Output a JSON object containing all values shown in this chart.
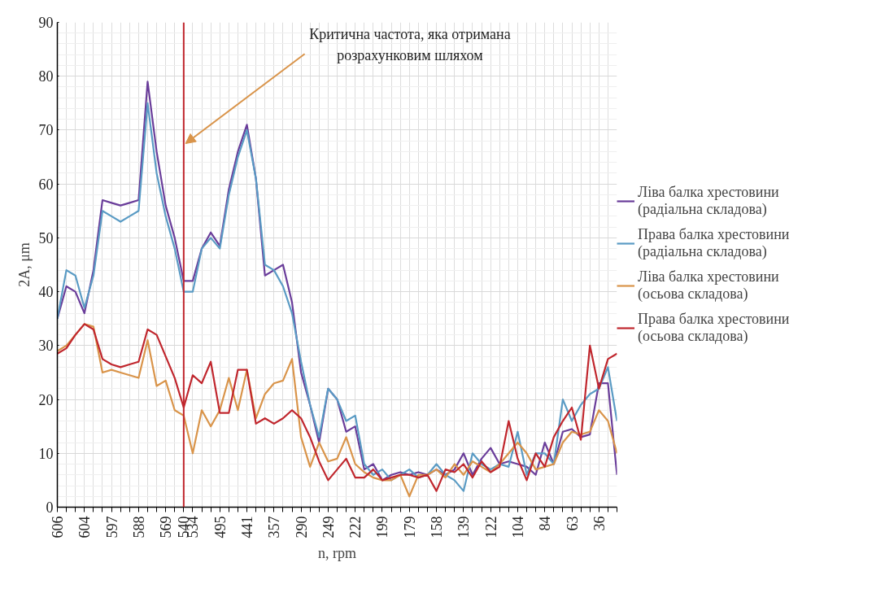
{
  "chart_data": {
    "type": "line",
    "categories": [
      "606",
      null,
      null,
      "604",
      null,
      null,
      "597",
      null,
      null,
      "588",
      null,
      null,
      "569",
      null,
      "540",
      "534",
      null,
      null,
      "495",
      null,
      null,
      "441",
      null,
      null,
      "357",
      null,
      null,
      "290",
      null,
      null,
      "249",
      null,
      null,
      "222",
      null,
      null,
      "199",
      null,
      null,
      "179",
      null,
      null,
      "158",
      null,
      null,
      "139",
      null,
      null,
      "122",
      null,
      null,
      "104",
      null,
      null,
      "84",
      null,
      null,
      "63",
      null,
      null,
      "36",
      null,
      null
    ],
    "xlabel": "n, rpm",
    "ylabel": "2A, μm",
    "ylim": [
      0,
      90
    ],
    "yticks": [
      0,
      10,
      20,
      30,
      40,
      50,
      60,
      70,
      80,
      90
    ],
    "grid": true,
    "legend": "right",
    "marker": "none",
    "line_style": "solid",
    "series": [
      {
        "name": "Ліва балка хрестовини (радіальна складова)",
        "color": "#6a3d9a",
        "values": [
          35,
          41,
          40,
          36,
          44,
          57,
          56.5,
          56,
          56.5,
          57,
          79,
          66,
          56,
          50,
          42,
          42,
          48,
          51,
          48.5,
          59,
          66,
          71,
          61,
          43,
          44,
          45,
          38,
          25,
          19,
          12,
          22,
          20,
          14,
          15,
          7,
          8,
          5,
          6,
          6.5,
          6,
          6.5,
          6,
          7,
          6,
          7,
          10,
          6,
          9,
          11,
          8,
          8.5,
          8,
          7.5,
          6,
          12,
          8,
          14,
          14.5,
          13,
          13.5,
          23,
          23,
          6
        ]
      },
      {
        "name": "Права балка хрестовини (радіальна складова)",
        "color": "#5a9bc4",
        "values": [
          35,
          44,
          43,
          37,
          43,
          55,
          54,
          53,
          54,
          55,
          75,
          62,
          54,
          48,
          40,
          40,
          48,
          50,
          48,
          58,
          65,
          70,
          61,
          45,
          44,
          41,
          36,
          27,
          19,
          13,
          22,
          20,
          16,
          17,
          8,
          6,
          7,
          5,
          6,
          7,
          5.5,
          6,
          8,
          6,
          5,
          3,
          10,
          8,
          7,
          8,
          7.5,
          14,
          6,
          10,
          10,
          8,
          20,
          16,
          19,
          21,
          22,
          26,
          16
        ]
      },
      {
        "name": "Ліва балка хрестовини (осьова складова)",
        "color": "#d9944a",
        "values": [
          29,
          30,
          32,
          34,
          33.5,
          25,
          25.5,
          25,
          24.5,
          24,
          31,
          22.5,
          23.5,
          18,
          17,
          10,
          18,
          15,
          18,
          24,
          18,
          25.5,
          16.5,
          21,
          23,
          23.5,
          27.5,
          13,
          7.5,
          12,
          8.5,
          9,
          13,
          8,
          6.5,
          5.5,
          5,
          5,
          6,
          2,
          6,
          6,
          7,
          5.5,
          8,
          6,
          8.5,
          7.5,
          6.5,
          8,
          10,
          12,
          10,
          7,
          7.5,
          8,
          12,
          14,
          13.5,
          14,
          18,
          16,
          10
        ]
      },
      {
        "name": "Права балка хрестовини (осьова складова)",
        "color": "#c0262d",
        "values": [
          28.5,
          29.5,
          32,
          34,
          33,
          27.5,
          26.5,
          26,
          26.5,
          27,
          33,
          32,
          28,
          24,
          18.5,
          24.5,
          23,
          27,
          17.5,
          17.5,
          25.5,
          25.5,
          15.5,
          16.5,
          15.5,
          16.5,
          18,
          16.5,
          13,
          8.5,
          5,
          7,
          9,
          5.5,
          5.5,
          7,
          5,
          5.5,
          6,
          6,
          5.5,
          6,
          3,
          7,
          6.5,
          8,
          5.5,
          8.5,
          6.5,
          7.5,
          16,
          9,
          5,
          10,
          7.5,
          13,
          16,
          18.5,
          12.5,
          30,
          22,
          27.5,
          28.5
        ]
      }
    ],
    "ref_lines": [
      {
        "axis": "x",
        "value": "540",
        "color": "#c0262d"
      }
    ],
    "annotations": [
      {
        "text": "Критична частота, яка отримана розрахунковим шляхом",
        "x": "540",
        "y": 67.5
      }
    ]
  }
}
